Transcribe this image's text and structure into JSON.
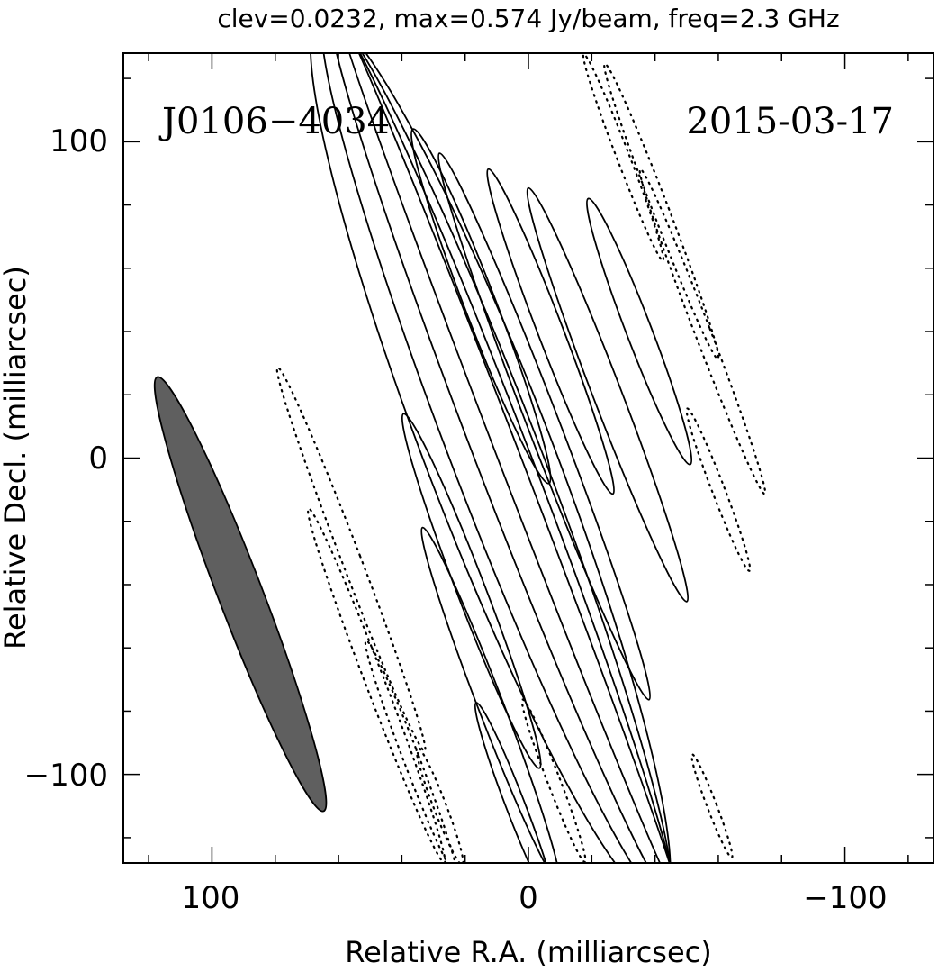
{
  "chart_data": {
    "type": "contour",
    "title": "clev=0.0232, max=0.574 Jy/beam, freq=2.3 GHz",
    "xlabel": "Relative R.A. (milliarcsec)",
    "ylabel": "Relative Decl. (milliarcsec)",
    "xlim": [
      128,
      -128
    ],
    "ylim": [
      -128,
      128
    ],
    "x_ticks": [
      100,
      0,
      -100
    ],
    "x_tick_labels": [
      "100",
      "0",
      "−100"
    ],
    "y_ticks": [
      100,
      0,
      -100
    ],
    "y_tick_labels": [
      "100",
      "0",
      "−100"
    ],
    "annotations": {
      "source": "J0106−4034",
      "date": "2015-03-17"
    },
    "beam": {
      "center": [
        91,
        -43
      ],
      "major_axis": 147,
      "minor_axis": 14,
      "position_angle_deg": 21,
      "fill_color": "#5f5f5f"
    },
    "contour_levels_note": "solid = positive, dotted = negative",
    "contours": [
      {
        "style": "solid",
        "center": [
          12,
          0
        ],
        "major": 300,
        "minor": 40,
        "pa": 21
      },
      {
        "style": "solid",
        "center": [
          10,
          0
        ],
        "major": 300,
        "minor": 28,
        "pa": 21
      },
      {
        "style": "solid",
        "center": [
          8,
          0
        ],
        "major": 300,
        "minor": 17,
        "pa": 21
      },
      {
        "style": "solid",
        "center": [
          6,
          0
        ],
        "major": 300,
        "minor": 7,
        "pa": 21
      },
      {
        "style": "solid",
        "center": [
          15,
          48
        ],
        "major": 120,
        "minor": 10,
        "pa": 21
      },
      {
        "style": "solid",
        "center": [
          -5,
          10
        ],
        "major": 185,
        "minor": 10,
        "pa": 21
      },
      {
        "style": "solid",
        "center": [
          -35,
          40
        ],
        "major": 90,
        "minor": 8,
        "pa": 21
      },
      {
        "style": "solid",
        "center": [
          -7,
          40
        ],
        "major": 110,
        "minor": 8,
        "pa": 21
      },
      {
        "style": "solid",
        "center": [
          -25,
          20
        ],
        "major": 140,
        "minor": 9,
        "pa": 21
      },
      {
        "style": "solid",
        "center": [
          18,
          -42
        ],
        "major": 120,
        "minor": 9,
        "pa": 21
      },
      {
        "style": "solid",
        "center": [
          12,
          -78
        ],
        "major": 120,
        "minor": 8,
        "pa": 21
      },
      {
        "style": "solid",
        "center": [
          4,
          -110
        ],
        "major": 70,
        "minor": 6,
        "pa": 21
      },
      {
        "style": "dotted",
        "center": [
          56,
          -32
        ],
        "major": 130,
        "minor": 6,
        "pa": 21
      },
      {
        "style": "dotted",
        "center": [
          48,
          -72
        ],
        "major": 120,
        "minor": 6,
        "pa": 21
      },
      {
        "style": "dotted",
        "center": [
          37,
          -95
        ],
        "major": 80,
        "minor": 5,
        "pa": 21
      },
      {
        "style": "dotted",
        "center": [
          28,
          -110
        ],
        "major": 40,
        "minor": 4,
        "pa": 21
      },
      {
        "style": "dotted",
        "center": [
          -8,
          -102
        ],
        "major": 55,
        "minor": 4,
        "pa": 21
      },
      {
        "style": "dotted",
        "center": [
          -30,
          95
        ],
        "major": 70,
        "minor": 4,
        "pa": 21
      },
      {
        "style": "dotted",
        "center": [
          -42,
          78
        ],
        "major": 100,
        "minor": 5,
        "pa": 21
      },
      {
        "style": "dotted",
        "center": [
          -55,
          40
        ],
        "major": 110,
        "minor": 5,
        "pa": 21
      },
      {
        "style": "dotted",
        "center": [
          -60,
          -10
        ],
        "major": 55,
        "minor": 4,
        "pa": 21
      },
      {
        "style": "dotted",
        "center": [
          -58,
          -110
        ],
        "major": 35,
        "minor": 3,
        "pa": 21
      }
    ]
  }
}
